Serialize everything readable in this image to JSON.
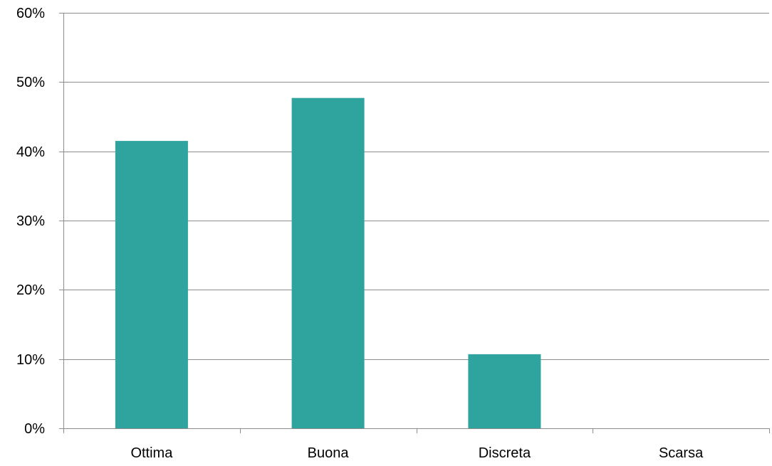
{
  "chart_data": {
    "type": "bar",
    "title": "",
    "xlabel": "",
    "ylabel": "",
    "categories": [
      "Ottima",
      "Buona",
      "Discreta",
      "Scarsa"
    ],
    "values": [
      0.415,
      0.477,
      0.107,
      0.0
    ],
    "ylim": [
      0,
      0.6
    ],
    "y_ticks": [
      0,
      0.1,
      0.2,
      0.3,
      0.4,
      0.5,
      0.6
    ],
    "y_tick_labels": [
      "0%",
      "10%",
      "20%",
      "30%",
      "40%",
      "50%",
      "60%"
    ],
    "y_format": "percent",
    "grid": true,
    "legend": "none",
    "colors": {
      "bar": "#2fa39e",
      "gridline": "#8c8c8c",
      "axis": "#8c8c8c"
    }
  }
}
